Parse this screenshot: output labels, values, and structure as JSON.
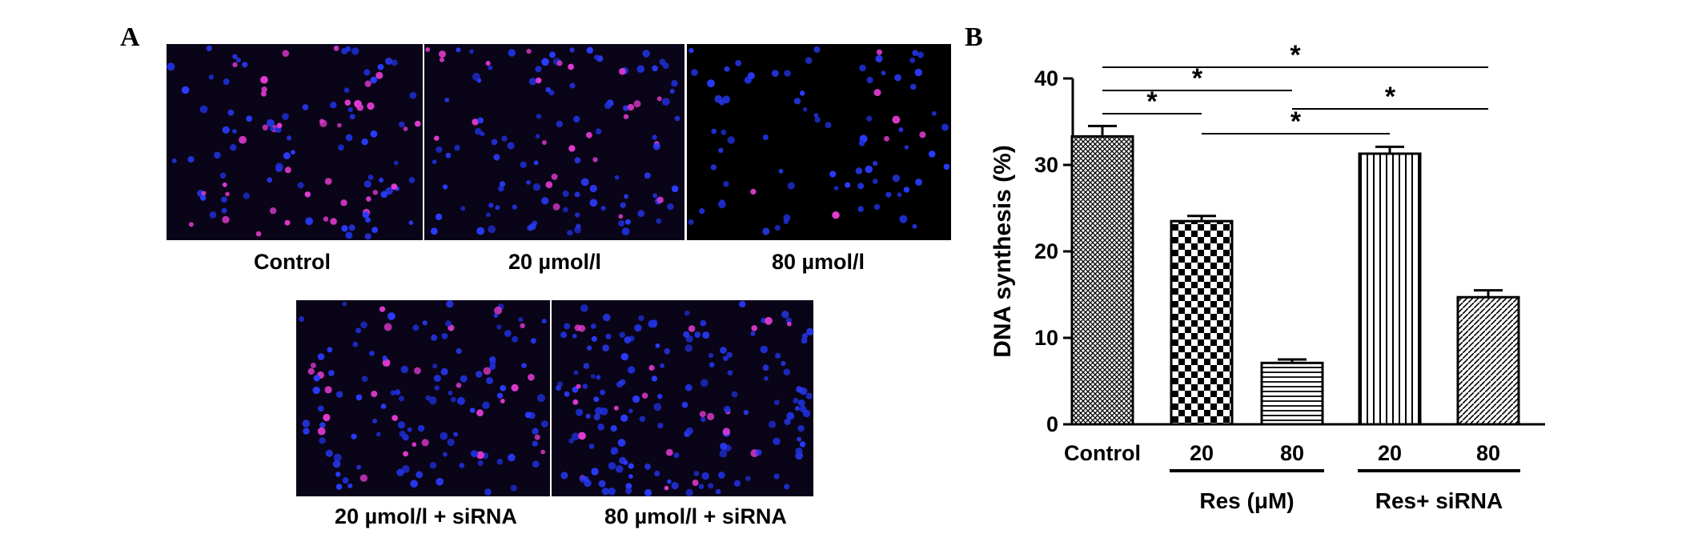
{
  "panel_a": {
    "letter": "A",
    "images": [
      {
        "caption": "Control"
      },
      {
        "caption": "20 µmol/l"
      },
      {
        "caption": "80 µmol/l"
      },
      {
        "caption": "20 µmol/l + siRNA"
      },
      {
        "caption": "80 µmol/l + siRNA"
      }
    ]
  },
  "panel_b": {
    "letter": "B"
  },
  "chart_data": {
    "type": "bar",
    "categories": [
      "Control",
      "20",
      "80",
      "20",
      "80"
    ],
    "values": [
      33.3,
      23.5,
      7.1,
      31.3,
      14.7
    ],
    "errors": [
      1.2,
      0.6,
      0.4,
      0.8,
      0.8
    ],
    "patterns": [
      "crosshatch",
      "checker",
      "horizontal",
      "vertical",
      "diagonal"
    ],
    "ylabel": "DNA synthesis (%)",
    "ylim": [
      0,
      40
    ],
    "yticks": [
      0,
      10,
      20,
      30,
      40
    ],
    "groups": [
      {
        "label": "Res (μM)",
        "categories": [
          1,
          2
        ]
      },
      {
        "label": "Res+ siRNA",
        "categories": [
          3,
          4
        ]
      }
    ],
    "significance": [
      {
        "from": 0,
        "to": 4,
        "label": "*"
      },
      {
        "from": 0,
        "to": 2,
        "label": "*"
      },
      {
        "from": 2,
        "to": 4,
        "label": "*"
      },
      {
        "from": 0,
        "to": 1,
        "label": "*"
      },
      {
        "from": 1,
        "to": 3,
        "label": "*"
      }
    ]
  }
}
